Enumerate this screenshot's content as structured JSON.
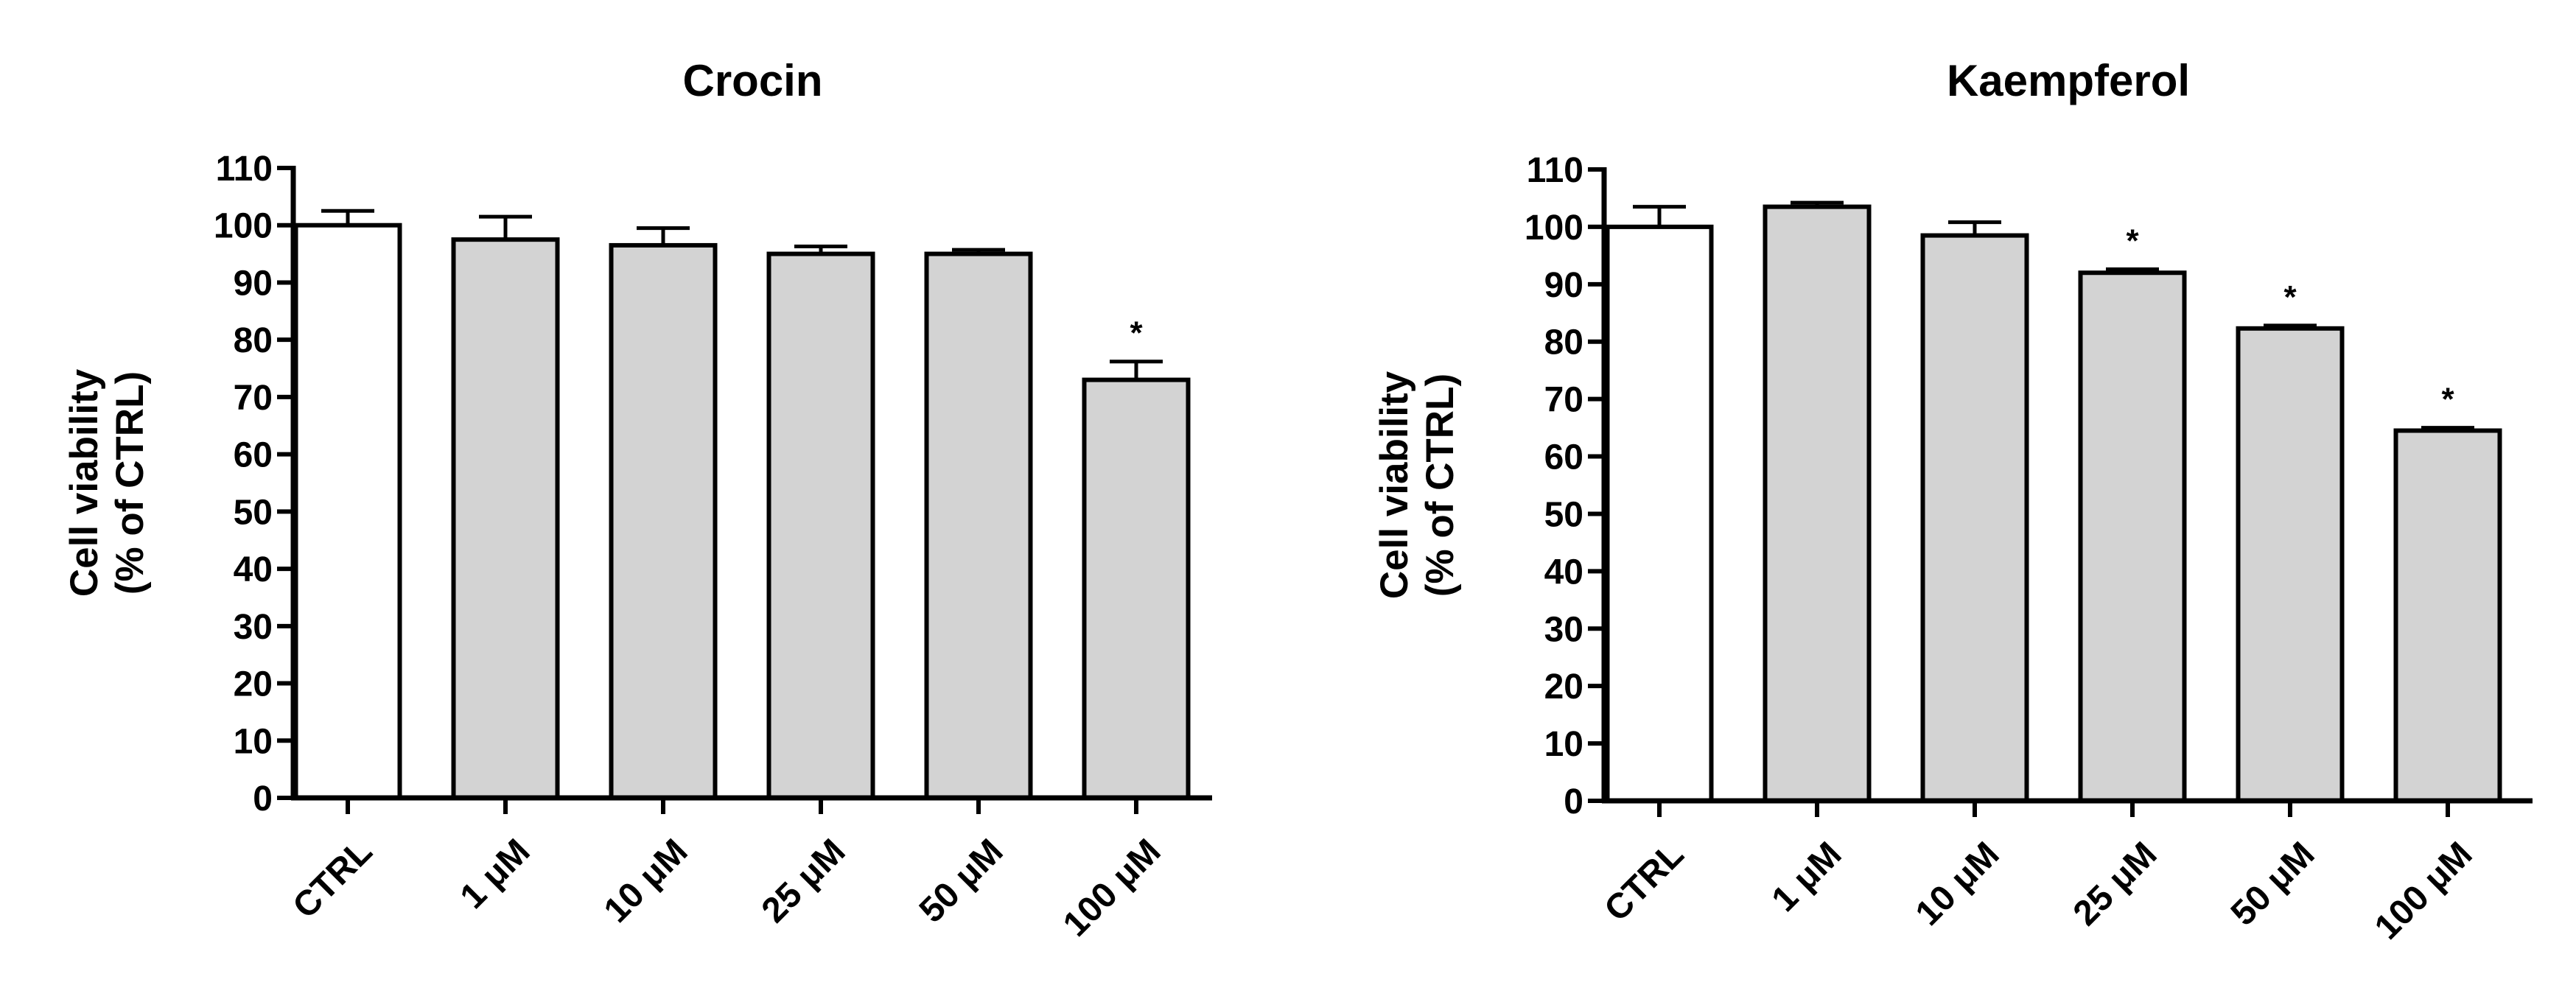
{
  "chart_data": [
    {
      "type": "bar",
      "title": "Crocin",
      "ylabel": [
        "Cell viability",
        "(% of CTRL)"
      ],
      "xlabel": "",
      "ylim": [
        0,
        110
      ],
      "yticks": [
        "0",
        "10",
        "20",
        "30",
        "40",
        "50",
        "60",
        "70",
        "80",
        "90",
        "100",
        "110"
      ],
      "categories": [
        "CTRL",
        "1 μM",
        "10 μM",
        "25 μM",
        "50 μM",
        "100 μM"
      ],
      "values": [
        100,
        97.5,
        96.5,
        95,
        95,
        73
      ],
      "errors": [
        2.5,
        4,
        3,
        1.3,
        0.7,
        3.2
      ],
      "significance": [
        "",
        "",
        "",
        "",
        "",
        "*"
      ],
      "colors": [
        "#ffffff",
        "#d3d3d3",
        "#d3d3d3",
        "#d3d3d3",
        "#d3d3d3",
        "#d3d3d3"
      ]
    },
    {
      "type": "bar",
      "title": "Kaempferol",
      "ylabel": [
        "Cell viability",
        "(% of CTRL)"
      ],
      "xlabel": "",
      "ylim": [
        0,
        110
      ],
      "yticks": [
        "0",
        "10",
        "20",
        "30",
        "40",
        "50",
        "60",
        "70",
        "80",
        "90",
        "100",
        "110"
      ],
      "categories": [
        "CTRL",
        "1 μM",
        "10 μM",
        "25 μM",
        "50 μM",
        "100 μM"
      ],
      "values": [
        100,
        103.5,
        98.5,
        92,
        82.3,
        64.5
      ],
      "errors": [
        3.5,
        0.7,
        2.3,
        0.6,
        0.5,
        0.5
      ],
      "significance": [
        "",
        "",
        "",
        "*",
        "*",
        "*"
      ],
      "colors": [
        "#ffffff",
        "#d3d3d3",
        "#d3d3d3",
        "#d3d3d3",
        "#d3d3d3",
        "#d3d3d3"
      ]
    }
  ]
}
